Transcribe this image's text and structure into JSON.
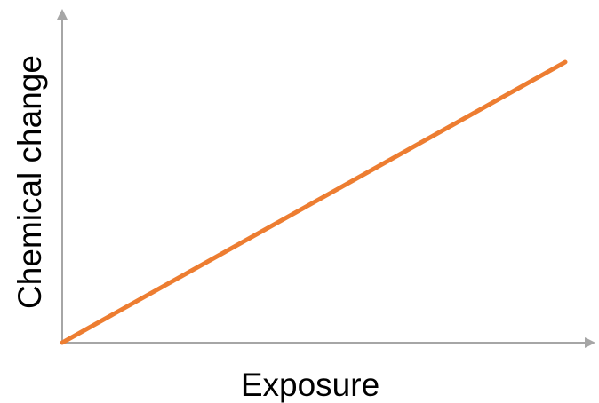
{
  "chart_data": {
    "type": "line",
    "title": "",
    "xlabel": "Exposure",
    "ylabel": "Chemical change",
    "x_ticks_shown": false,
    "y_ticks_shown": false,
    "grid": false,
    "legend": "none",
    "series": [
      {
        "color": "#ed7d31",
        "x": [
          0,
          1
        ],
        "y": [
          0,
          1
        ]
      }
    ],
    "xlim": [
      0,
      1.06
    ],
    "ylim": [
      0,
      1.19
    ],
    "axis_color": "#a6a6a6"
  }
}
